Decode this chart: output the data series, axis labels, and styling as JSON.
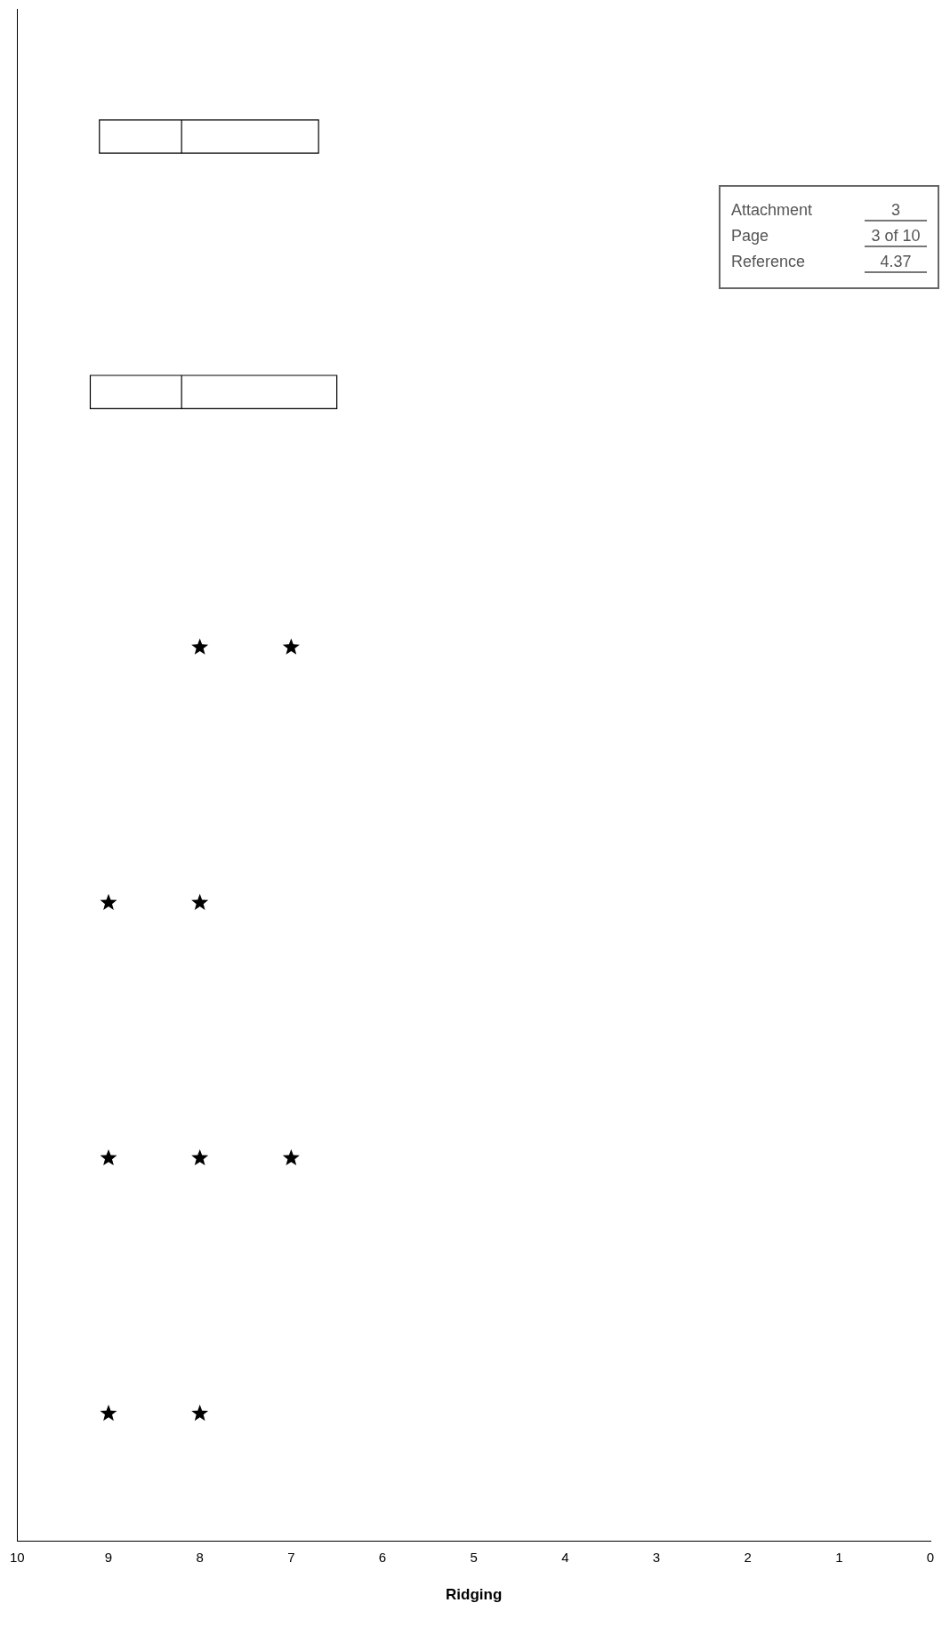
{
  "chart_data": {
    "type": "box",
    "orientation": "horizontal",
    "xlabel": "Ridging",
    "categories": [
      null,
      null,
      null,
      null,
      null,
      null
    ],
    "xlim": [
      10,
      0
    ],
    "xticks": [
      10,
      9,
      8,
      7,
      6,
      5,
      4,
      3,
      2,
      1,
      0
    ],
    "marker": "star",
    "series": [
      {
        "type": "box",
        "color": "#000000",
        "boxes": [
          {
            "low": 6.7,
            "q1": 6.7,
            "median": 8.2,
            "q3": 9.1,
            "high": 9.1
          },
          {
            "low": 6.5,
            "q1": 6.5,
            "median": 8.2,
            "q3": 9.2,
            "high": 9.2
          },
          null,
          null,
          null,
          null
        ]
      },
      {
        "type": "scatter",
        "color": "#000000",
        "values": [
          null,
          null,
          8,
          9,
          9,
          9
        ]
      },
      {
        "type": "scatter",
        "color": "#000000",
        "values": [
          null,
          null,
          7,
          8,
          8,
          8
        ]
      },
      {
        "type": "scatter",
        "color": "#000000",
        "values": [
          null,
          null,
          null,
          null,
          7,
          null
        ]
      }
    ],
    "annotations": [
      "Attachment",
      "3",
      "Page",
      "3 of 10",
      "Reference",
      "4.37"
    ]
  }
}
